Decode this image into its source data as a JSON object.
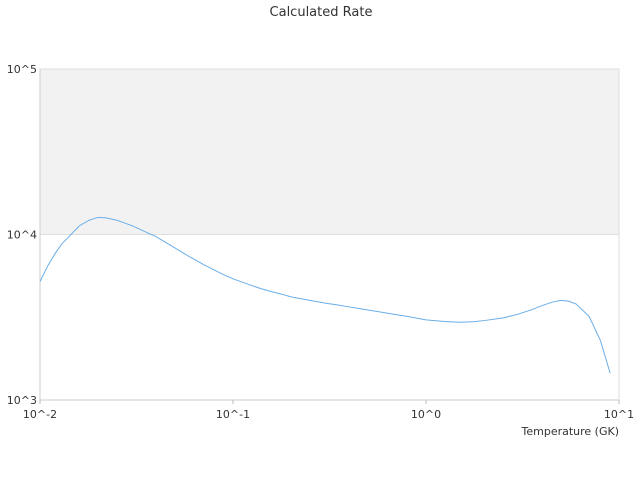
{
  "chart_data": {
    "type": "line",
    "title": "Calculated Rate",
    "xlabel": "Temperature (GK)",
    "ylabel": "",
    "x_scale": "log",
    "y_scale": "log",
    "xlim": [
      0.01,
      10
    ],
    "ylim": [
      1000,
      100000
    ],
    "x_ticks": [
      {
        "value": 0.01,
        "label": "10^-2"
      },
      {
        "value": 0.1,
        "label": "10^-1"
      },
      {
        "value": 1,
        "label": "10^0"
      },
      {
        "value": 10,
        "label": "10^1"
      }
    ],
    "y_ticks": [
      {
        "value": 1000,
        "label": "10^3"
      },
      {
        "value": 10000,
        "label": "10^4"
      },
      {
        "value": 100000,
        "label": "10^5"
      }
    ],
    "shaded_band": {
      "y_from": 10000,
      "y_to": 100000,
      "color": "#f2f2f2"
    },
    "grid": false,
    "legend": "none",
    "line_color": "#6aaee8",
    "series": [
      {
        "x": [
          0.01,
          0.011,
          0.012,
          0.013,
          0.014,
          0.016,
          0.018,
          0.02,
          0.022,
          0.025,
          0.03,
          0.035,
          0.04,
          0.05,
          0.06,
          0.07,
          0.08,
          0.09,
          0.1,
          0.12,
          0.14,
          0.16,
          0.18,
          0.2,
          0.25,
          0.3,
          0.35,
          0.4,
          0.45,
          0.5,
          0.6,
          0.7,
          0.8,
          0.9,
          1.0,
          1.25,
          1.5,
          1.75,
          2.0,
          2.5,
          3.0,
          3.5,
          4.0,
          4.5,
          5.0,
          5.5,
          6.0,
          7.0,
          8.0,
          9.0
        ],
        "y": [
          5200,
          6500,
          7700,
          8800,
          9600,
          11300,
          12200,
          12700,
          12600,
          12200,
          11300,
          10400,
          9700,
          8300,
          7300,
          6600,
          6100,
          5700,
          5400,
          5000,
          4700,
          4500,
          4350,
          4200,
          4000,
          3850,
          3750,
          3650,
          3570,
          3500,
          3380,
          3280,
          3200,
          3120,
          3050,
          2980,
          2950,
          2970,
          3020,
          3130,
          3300,
          3500,
          3720,
          3900,
          4000,
          3950,
          3800,
          3200,
          2300,
          1450
        ]
      }
    ]
  }
}
